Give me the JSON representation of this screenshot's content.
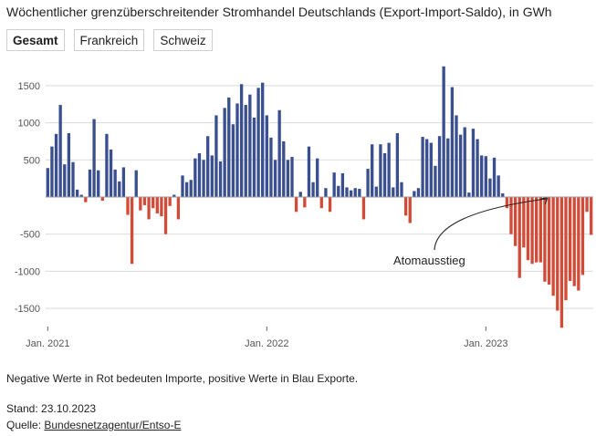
{
  "title": "Wöchentlicher grenzüberschreitender Stromhandel Deutschlands (Export-Import-Saldo), in GWh",
  "tabs": [
    {
      "label": "Gesamt",
      "active": true
    },
    {
      "label": "Frankreich",
      "active": false
    },
    {
      "label": "Schweiz",
      "active": false
    }
  ],
  "chart_data": {
    "type": "bar",
    "ylim": [
      -1800,
      1800
    ],
    "yticks": [
      1500,
      1000,
      500,
      -500,
      -1000,
      -1500
    ],
    "ytick_labels": [
      "1500",
      "1000",
      "500",
      "-500",
      "-1000",
      "-1500"
    ],
    "xticks": [
      {
        "label": "Jan. 2021",
        "index": 0
      },
      {
        "label": "Jan. 2022",
        "index": 52
      },
      {
        "label": "Jan. 2023",
        "index": 104
      }
    ],
    "positive_color": "#3a4f8f",
    "negative_color": "#d14b38",
    "annotation": {
      "text": "Atomausstieg",
      "index": 119
    },
    "values": [
      390,
      680,
      850,
      1240,
      440,
      860,
      470,
      100,
      30,
      -70,
      370,
      1050,
      360,
      -50,
      850,
      640,
      370,
      210,
      400,
      -240,
      -900,
      360,
      -180,
      -110,
      -300,
      -150,
      -220,
      -260,
      -500,
      -120,
      30,
      -300,
      290,
      200,
      230,
      520,
      590,
      500,
      820,
      560,
      1100,
      480,
      1200,
      1340,
      980,
      1260,
      1520,
      1240,
      1380,
      1070,
      1470,
      1540,
      1100,
      800,
      500,
      1170,
      750,
      500,
      540,
      -200,
      70,
      -140,
      680,
      200,
      520,
      -150,
      120,
      -200,
      330,
      150,
      320,
      130,
      90,
      120,
      110,
      -300,
      380,
      710,
      140,
      710,
      590,
      730,
      130,
      860,
      200,
      -250,
      -350,
      80,
      120,
      810,
      780,
      730,
      420,
      820,
      1760,
      790,
      1480,
      1100,
      840,
      940,
      60,
      920,
      780,
      560,
      550,
      250,
      530,
      290,
      50,
      -150,
      -500,
      -660,
      -1090,
      -680,
      -850,
      -900,
      -880,
      -880,
      -1140,
      -1180,
      -1330,
      -1530,
      -1760,
      -1390,
      -1130,
      -1200,
      -1260,
      -1050,
      -200,
      -510
    ]
  },
  "footnote": "Negative Werte in Rot bedeuten Importe, positive Werte in Blau Exporte.",
  "stand": "Stand: 23.10.2023",
  "source_prefix": "Quelle: ",
  "source_link": "Bundesnetzagentur/Entso-E"
}
